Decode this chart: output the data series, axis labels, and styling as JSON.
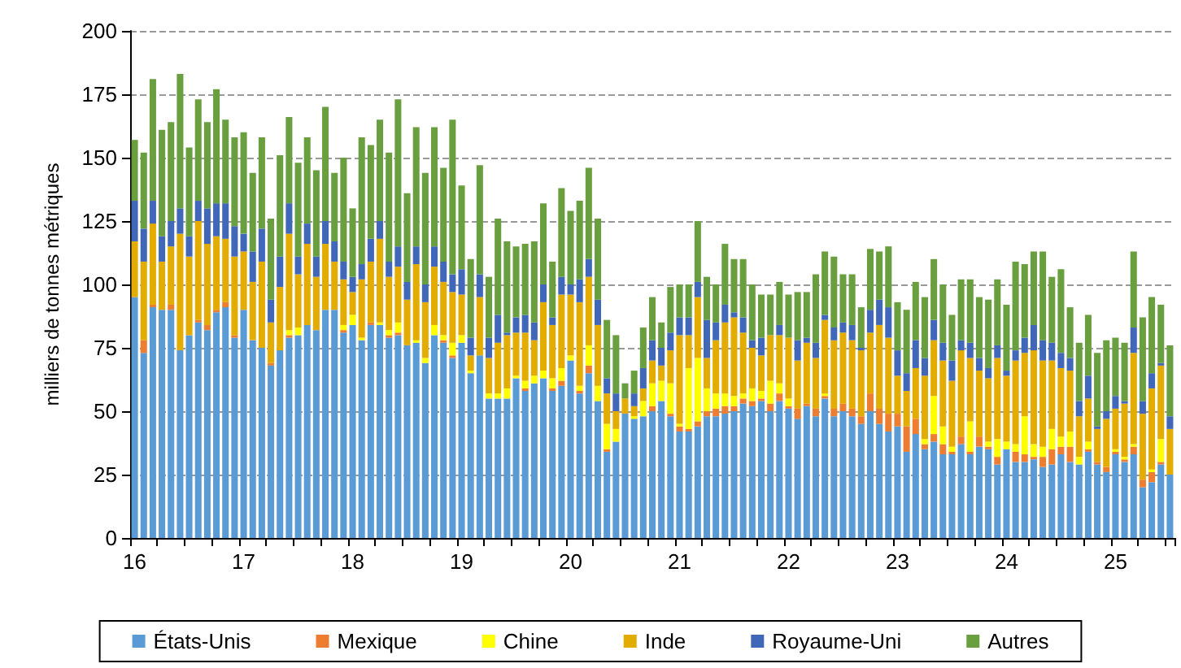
{
  "chart_data": {
    "type": "bar",
    "stacked": true,
    "ylabel": "milliers de tonnes métriques",
    "categories": [
      "16",
      null,
      null,
      null,
      null,
      null,
      null,
      null,
      null,
      null,
      null,
      null,
      "17",
      null,
      null,
      null,
      null,
      null,
      null,
      null,
      null,
      null,
      null,
      null,
      "18",
      null,
      null,
      null,
      null,
      null,
      null,
      null,
      null,
      null,
      null,
      null,
      "19",
      null,
      null,
      null,
      null,
      null,
      null,
      null,
      null,
      null,
      null,
      null,
      "20",
      null,
      null,
      null,
      null,
      null,
      null,
      null,
      null,
      null,
      null,
      null,
      "21",
      null,
      null,
      null,
      null,
      null,
      null,
      null,
      null,
      null,
      null,
      null,
      "22",
      null,
      null,
      null,
      null,
      null,
      null,
      null,
      null,
      null,
      null,
      null,
      "23",
      null,
      null,
      null,
      null,
      null,
      null,
      null,
      null,
      null,
      null,
      null,
      "24",
      null,
      null,
      null,
      null,
      null,
      null,
      null,
      null,
      null,
      null,
      null,
      "25",
      null,
      null,
      null,
      null,
      null,
      null
    ],
    "series": [
      {
        "name": "États-Unis",
        "color": "#5b9bd5",
        "values": [
          95,
          73,
          91,
          90,
          90,
          74,
          80,
          85,
          82,
          89,
          91,
          79,
          90,
          78,
          75,
          68,
          74,
          79,
          80,
          84,
          82,
          90,
          90,
          81,
          84,
          78,
          84,
          84,
          79,
          80,
          76,
          77,
          69,
          80,
          77,
          71,
          77,
          65,
          72,
          55,
          55,
          55,
          63,
          58,
          61,
          63,
          58,
          60,
          70,
          57,
          65,
          54,
          34,
          38,
          49,
          47,
          48,
          50,
          54,
          48,
          42,
          42,
          44,
          48,
          48,
          49,
          50,
          53,
          52,
          54,
          50,
          54,
          51,
          47,
          52,
          48,
          55,
          48,
          50,
          48,
          45,
          50,
          45,
          42,
          44,
          34,
          41,
          35,
          38,
          33,
          33,
          37,
          33,
          36,
          35,
          29,
          35,
          30,
          30,
          31,
          28,
          29,
          33,
          30,
          29,
          34,
          29,
          26,
          33,
          30,
          33,
          20,
          22,
          29,
          25
        ]
      },
      {
        "name": "Mexique",
        "color": "#ed7d31",
        "values": [
          0,
          5,
          1,
          0,
          2,
          0,
          0,
          1,
          2,
          1,
          2,
          1,
          0,
          0,
          0,
          1,
          0,
          1,
          0,
          0,
          0,
          0,
          0,
          1,
          0,
          0,
          1,
          0,
          1,
          1,
          0,
          0,
          0,
          0,
          1,
          1,
          0,
          0,
          0,
          0,
          0,
          0,
          0,
          1,
          0,
          0,
          1,
          2,
          0,
          1,
          3,
          0,
          1,
          0,
          0,
          0,
          0,
          2,
          0,
          1,
          2,
          1,
          2,
          2,
          3,
          3,
          2,
          2,
          2,
          1,
          3,
          3,
          1,
          4,
          1,
          3,
          1,
          3,
          3,
          3,
          3,
          7,
          6,
          7,
          5,
          10,
          6,
          2,
          3,
          4,
          1,
          3,
          1,
          4,
          1,
          3,
          0,
          4,
          3,
          1,
          4,
          6,
          3,
          6,
          0,
          1,
          1,
          2,
          1,
          1,
          3,
          3,
          4,
          1,
          0
        ]
      },
      {
        "name": "Chine",
        "color": "#ffff00",
        "values": [
          0,
          0,
          0,
          0,
          0,
          0,
          0,
          0,
          0,
          0,
          0,
          0,
          0,
          0,
          0,
          0,
          0,
          2,
          3,
          0,
          0,
          0,
          0,
          2,
          4,
          1,
          0,
          1,
          2,
          4,
          0,
          1,
          2,
          4,
          2,
          5,
          3,
          1,
          0,
          2,
          2,
          4,
          1,
          3,
          3,
          3,
          4,
          5,
          2,
          2,
          8,
          6,
          10,
          5,
          0,
          1,
          6,
          9,
          8,
          12,
          1,
          24,
          25,
          9,
          6,
          5,
          4,
          2,
          5,
          3,
          9,
          4,
          3,
          0,
          0,
          0,
          1,
          0,
          0,
          0,
          0,
          0,
          0,
          0,
          0,
          0,
          0,
          2,
          15,
          7,
          2,
          0,
          12,
          0,
          2,
          7,
          3,
          3,
          15,
          5,
          4,
          8,
          4,
          6,
          3,
          3,
          0,
          0,
          1,
          1,
          1,
          0,
          1,
          9,
          0
        ]
      },
      {
        "name": "Inde",
        "color": "#e3ac00",
        "values": [
          22,
          31,
          32,
          19,
          23,
          46,
          31,
          39,
          32,
          29,
          25,
          31,
          23,
          23,
          34,
          16,
          25,
          38,
          21,
          32,
          21,
          26,
          19,
          18,
          9,
          23,
          24,
          33,
          21,
          22,
          18,
          30,
          22,
          23,
          21,
          20,
          16,
          6,
          23,
          14,
          20,
          21,
          17,
          19,
          14,
          27,
          21,
          29,
          24,
          33,
          27,
          24,
          12,
          7,
          6,
          4,
          5,
          9,
          6,
          13,
          35,
          13,
          24,
          12,
          21,
          28,
          31,
          24,
          16,
          14,
          18,
          19,
          24,
          19,
          24,
          20,
          29,
          27,
          28,
          27,
          26,
          24,
          33,
          30,
          15,
          14,
          20,
          25,
          22,
          26,
          26,
          34,
          25,
          26,
          25,
          32,
          26,
          33,
          25,
          37,
          34,
          27,
          27,
          24,
          16,
          17,
          13,
          19,
          16,
          21,
          36,
          26,
          32,
          29,
          18
        ]
      },
      {
        "name": "Royaume-Uni",
        "color": "#4168b8",
        "values": [
          16,
          13,
          9,
          10,
          10,
          10,
          8,
          8,
          14,
          13,
          14,
          12,
          7,
          12,
          13,
          9,
          12,
          12,
          7,
          8,
          8,
          9,
          8,
          7,
          6,
          6,
          9,
          7,
          6,
          8,
          7,
          7,
          7,
          8,
          8,
          7,
          10,
          7,
          9,
          8,
          11,
          1,
          6,
          7,
          7,
          7,
          3,
          7,
          4,
          9,
          7,
          10,
          6,
          7,
          0,
          5,
          8,
          8,
          7,
          7,
          7,
          7,
          6,
          15,
          7,
          7,
          2,
          6,
          3,
          7,
          0,
          4,
          0,
          8,
          2,
          6,
          2,
          5,
          4,
          6,
          1,
          9,
          10,
          12,
          10,
          7,
          11,
          7,
          8,
          7,
          8,
          4,
          6,
          5,
          4,
          5,
          2,
          4,
          6,
          10,
          8,
          7,
          6,
          5,
          6,
          9,
          1,
          3,
          5,
          1,
          10,
          5,
          6,
          1,
          5
        ]
      },
      {
        "name": "Autres",
        "color": "#6a9f40",
        "values": [
          24,
          30,
          48,
          42,
          39,
          53,
          35,
          40,
          34,
          45,
          33,
          35,
          40,
          31,
          36,
          32,
          40,
          34,
          37,
          34,
          34,
          45,
          27,
          41,
          27,
          50,
          37,
          40,
          43,
          58,
          35,
          47,
          44,
          47,
          37,
          61,
          33,
          31,
          43,
          24,
          38,
          36,
          28,
          28,
          32,
          32,
          22,
          35,
          29,
          31,
          36,
          32,
          23,
          23,
          6,
          9,
          16,
          17,
          10,
          18,
          13,
          13,
          24,
          17,
          15,
          24,
          21,
          23,
          22,
          17,
          16,
          17,
          17,
          19,
          18,
          27,
          25,
          28,
          19,
          20,
          16,
          24,
          19,
          24,
          19,
          25,
          23,
          24,
          24,
          23,
          18,
          24,
          25,
          24,
          27,
          26,
          26,
          35,
          29,
          29,
          35,
          26,
          33,
          20,
          23,
          24,
          29,
          28,
          23,
          23,
          30,
          33,
          30,
          23,
          28
        ]
      }
    ],
    "ylim": [
      0,
      200
    ],
    "yticks": [
      0,
      25,
      50,
      75,
      100,
      125,
      150,
      175,
      200
    ],
    "grid": "y",
    "legend": "bottom"
  }
}
